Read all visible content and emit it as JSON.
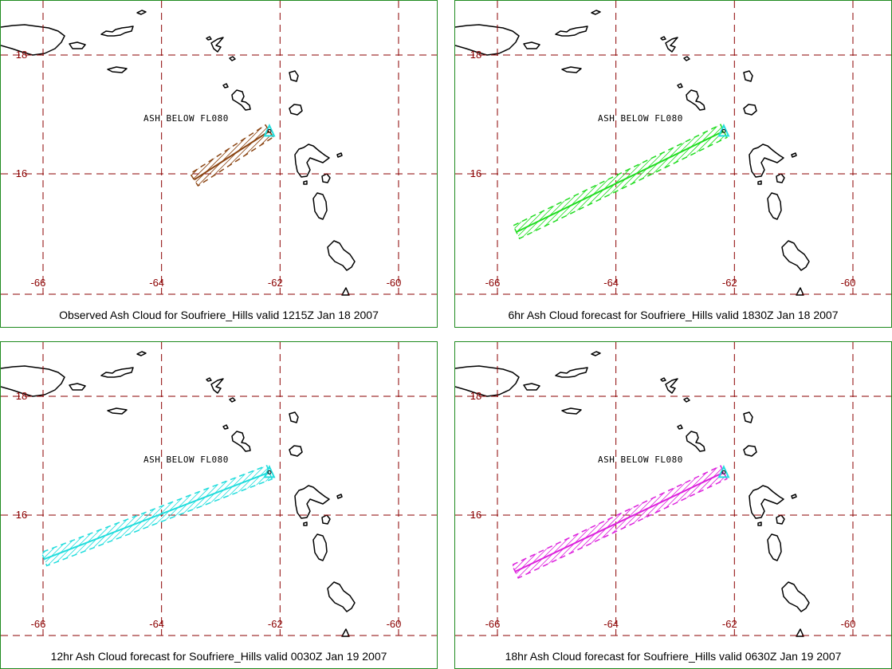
{
  "panels": [
    {
      "caption": "Observed Ash Cloud for Soufriere_Hills valid 1215Z Jan 18 2007",
      "annotation": "ASH BELOW FL080",
      "color": "#8b4513",
      "plume_end_lon": -63.45,
      "plume_end_lat": 15.9
    },
    {
      "caption": "6hr Ash Cloud forecast for Soufriere_Hills valid 1830Z Jan 18 2007",
      "annotation": "ASH BELOW FL080",
      "color": "#22dd22",
      "plume_end_lon": -65.68,
      "plume_end_lat": 15.02
    },
    {
      "caption": "12hr Ash Cloud forecast for Soufriere_Hills valid 0030Z Jan 19 2007",
      "annotation": "ASH BELOW FL080",
      "color": "#22dddd",
      "plume_end_lon": -65.98,
      "plume_end_lat": 15.26
    },
    {
      "caption": "18hr Ash Cloud forecast for Soufriere_Hills valid 0630Z Jan 19 2007",
      "annotation": "ASH BELOW FL080",
      "color": "#dd22dd",
      "plume_end_lon": -65.7,
      "plume_end_lat": 15.05
    }
  ],
  "map": {
    "lon_labels": [
      "-66",
      "-64",
      "-62",
      "-60"
    ],
    "lon_values": [
      -66,
      -64,
      -62,
      -60
    ],
    "lat_labels": [
      "18",
      "16"
    ],
    "lat_values": [
      18,
      16
    ],
    "grid_color": "#8b0000",
    "coast_color": "#000000",
    "volcano": {
      "lon": -62.18,
      "lat": 16.72
    }
  }
}
